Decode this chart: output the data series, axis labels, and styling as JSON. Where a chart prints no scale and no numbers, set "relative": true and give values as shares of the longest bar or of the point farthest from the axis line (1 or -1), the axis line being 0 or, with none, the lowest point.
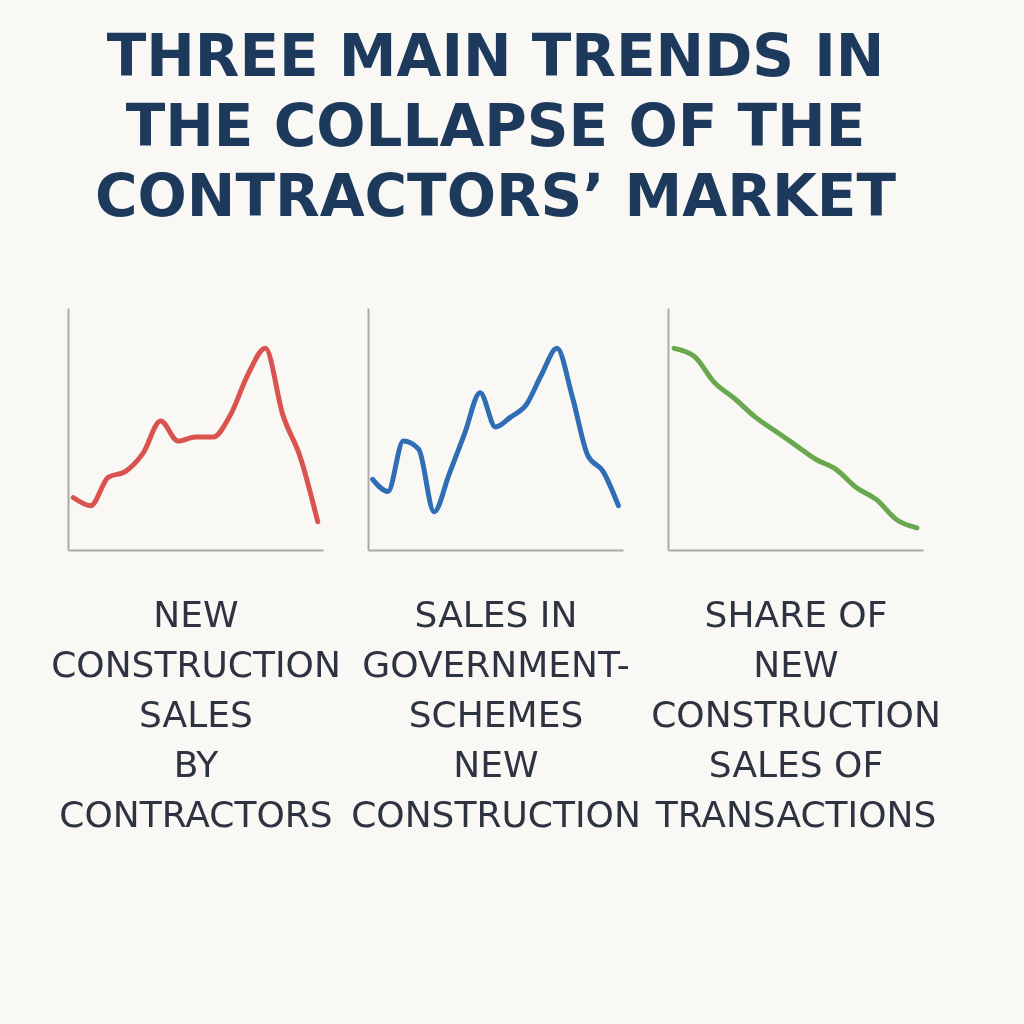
{
  "chart_data": [
    {
      "type": "line",
      "title": "THREE MAIN TRENDS IN\nTHE COLLAPSE OF THE\nCONTRACTORS’ MARKET",
      "xlabel": "NEW\nCONSTRUCTION\nSALES\nBY\nCONTRACTORS",
      "relative": true,
      "tick_labels": false,
      "categories": [
        null,
        null,
        null,
        null,
        null,
        null,
        null,
        null,
        null,
        null,
        null,
        null,
        null,
        null,
        null
      ],
      "series": [
        {
          "color": "#d9534f",
          "values": [
            0.26,
            0.22,
            0.36,
            0.39,
            0.48,
            0.64,
            0.54,
            0.56,
            0.56,
            0.67,
            0.87,
            1.0,
            0.67,
            0.46,
            0.14
          ]
        }
      ]
    },
    {
      "type": "line",
      "xlabel": "SALES IN\nGOVERNMENT-\nSCHEMES\nNEW\nCONSTRUCTION",
      "relative": true,
      "tick_labels": false,
      "categories": [
        null,
        null,
        null,
        null,
        null,
        null,
        null,
        null,
        null,
        null,
        null,
        null,
        null,
        null,
        null,
        null,
        null
      ],
      "series": [
        {
          "color": "#2f6db5",
          "values": [
            0.35,
            0.29,
            0.54,
            0.5,
            0.19,
            0.38,
            0.58,
            0.78,
            0.61,
            0.66,
            0.72,
            0.87,
            1.0,
            0.76,
            0.47,
            0.39,
            0.22
          ]
        }
      ]
    },
    {
      "type": "line",
      "xlabel": "SHARE OF\nNEW\nCONSTRUCTION\nSALES OF\nTRANSACTIONS",
      "relative": true,
      "tick_labels": false,
      "categories": [
        null,
        null,
        null,
        null,
        null,
        null,
        null,
        null,
        null,
        null,
        null,
        null,
        null
      ],
      "series": [
        {
          "color": "#6aa84f",
          "values": [
            1.0,
            0.96,
            0.83,
            0.75,
            0.66,
            0.59,
            0.52,
            0.45,
            0.4,
            0.31,
            0.25,
            0.15,
            0.11
          ]
        }
      ]
    }
  ]
}
